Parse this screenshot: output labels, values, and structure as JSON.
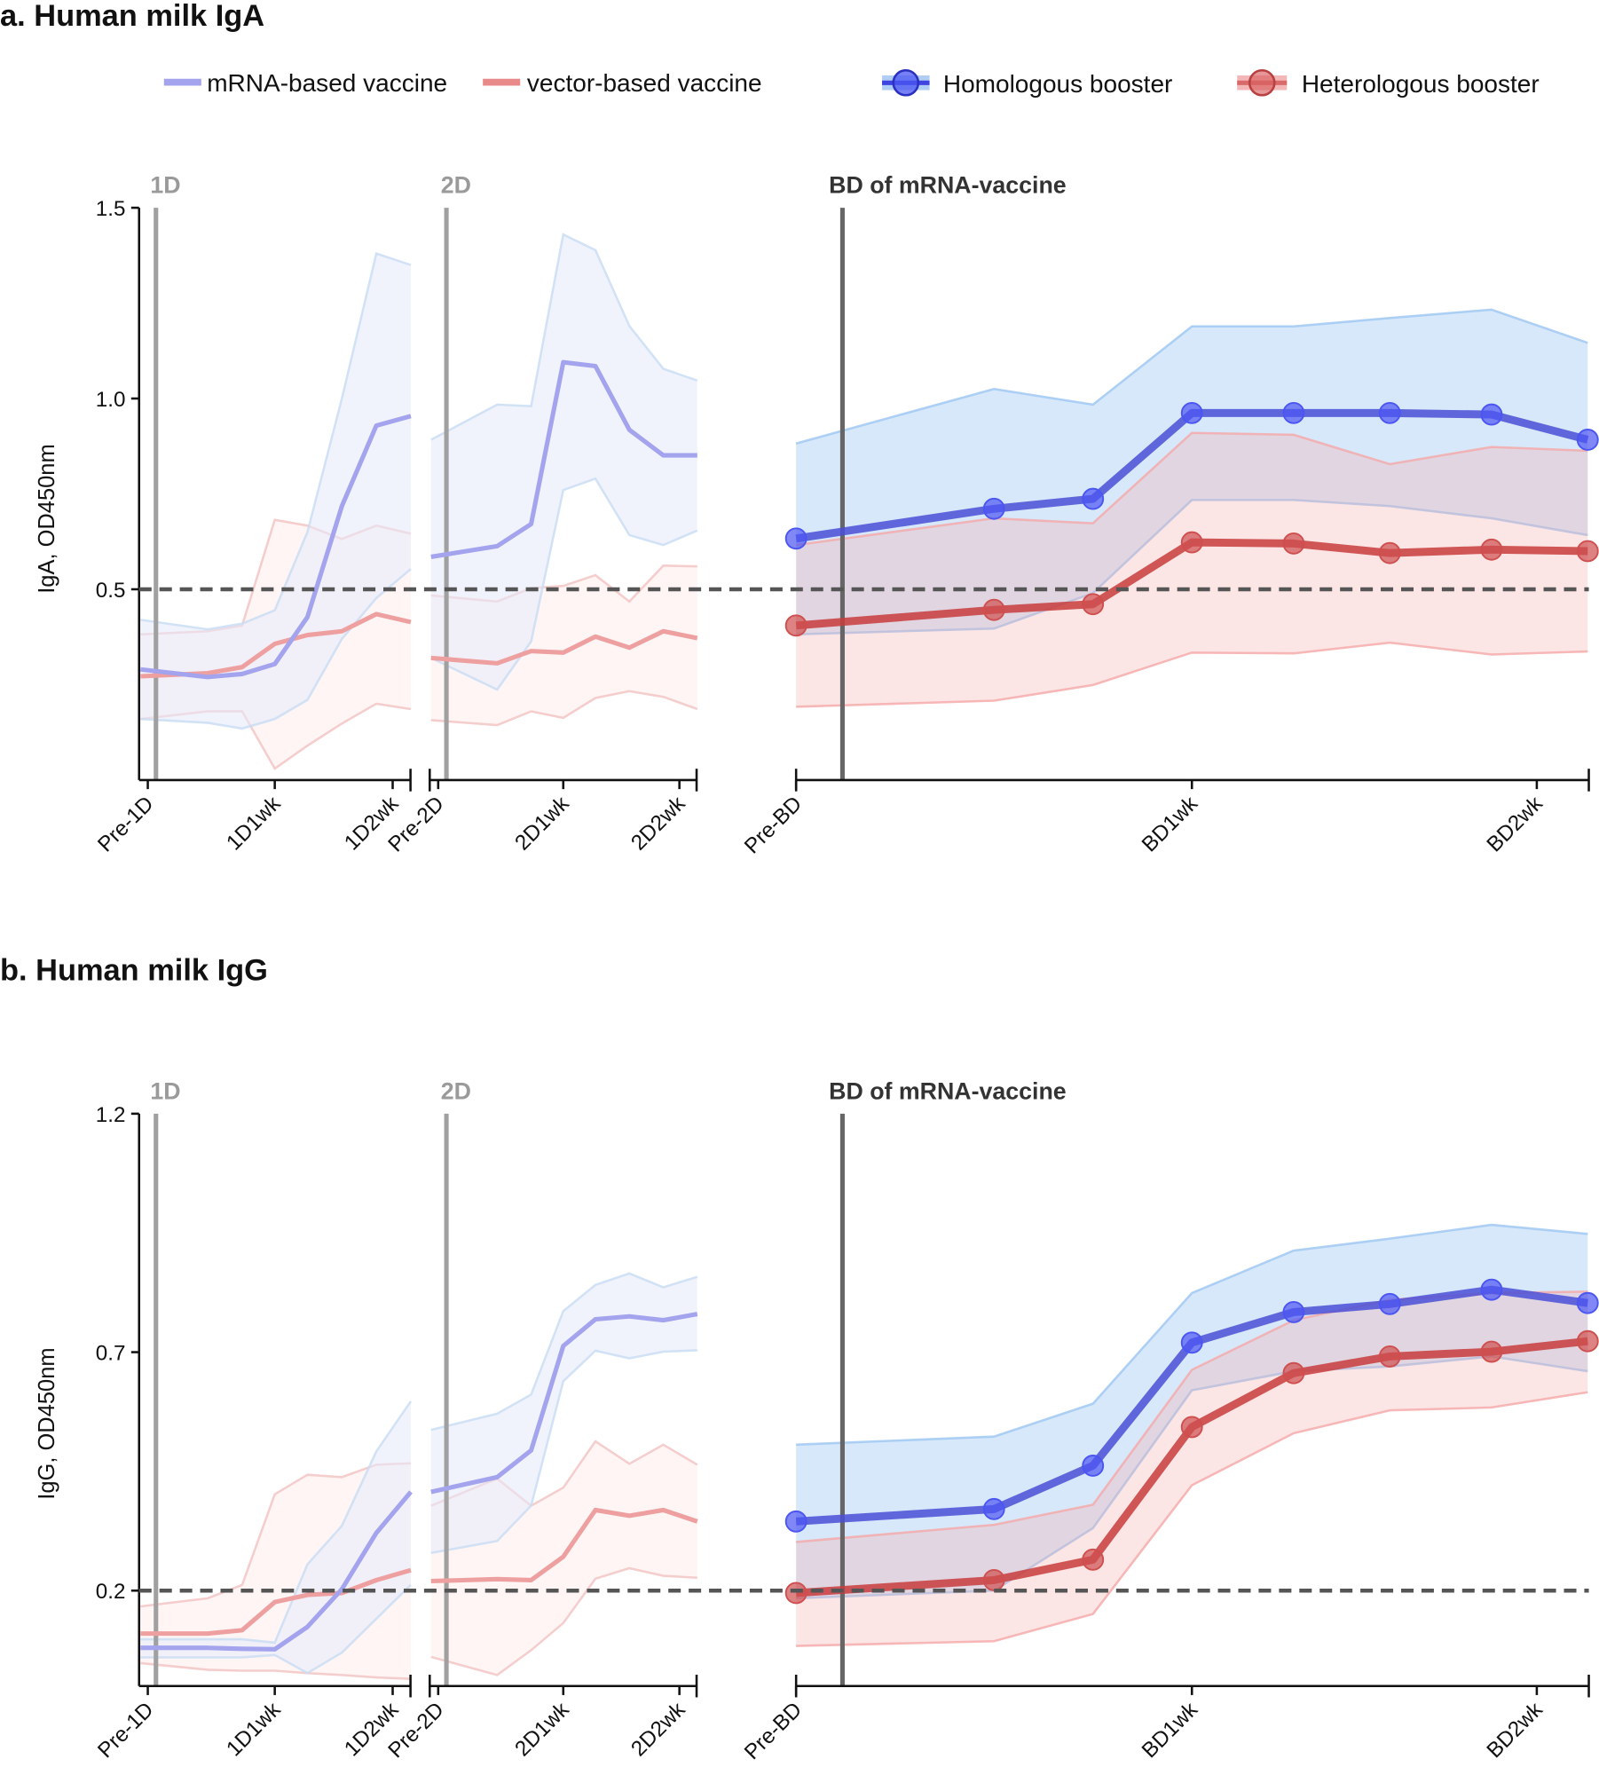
{
  "legend": {
    "items": [
      {
        "label": "mRNA-based vaccine",
        "color": "#a3a3ee",
        "marker": false
      },
      {
        "label": "vector-based vaccine",
        "color": "#e88a8a",
        "marker": false
      },
      {
        "label": "Homologous booster",
        "color": "#3f44e0",
        "band": "#8fb8f0",
        "marker": true
      },
      {
        "label": "Heterologous booster",
        "color": "#cc4444",
        "band": "#f0a5a5",
        "marker": true
      }
    ]
  },
  "colors": {
    "mrna_line": "#a3a3ee",
    "mrna_band": "#e6eaf9",
    "mrna_edge": "#c8dcf4",
    "vector_line": "#eea0a0",
    "vector_band": "#fdeeec",
    "vector_edge": "#f2c2c2",
    "homologous_line": "#4a4fd6",
    "homologous_marker": "#4b55f2",
    "homologous_band": "#9cc6f2",
    "heterologous_line": "#c83c3c",
    "heterologous_marker": "#cf4f4f",
    "heterologous_band": "#f5a8a8",
    "threshold": "#555555",
    "dose_line_light": "#a0a0a0",
    "dose_line_dark": "#666666"
  },
  "chart_data": [
    {
      "type": "line",
      "title": "a. Human milk IgA",
      "ylabel": "IgA, OD450nm",
      "ylim": [
        0,
        1.5
      ],
      "yticks": [
        {
          "value": 0.5,
          "label": "0.5"
        },
        {
          "value": 1.0,
          "label": "1.0"
        },
        {
          "value": 1.5,
          "label": "1.5"
        }
      ],
      "threshold": 0.5,
      "grid": false,
      "segments": [
        {
          "dose_label": "1D",
          "dose_x": 0.45,
          "ticks": [
            {
              "label": "Pre-1D",
              "x": 0
            },
            {
              "label": "1D1wk",
              "x": 7
            },
            {
              "label": "1D2wk",
              "x": 13.5
            }
          ],
          "x": [
            -0.4,
            3.3,
            5.2,
            7,
            8.8,
            10.7,
            12.6,
            14.5
          ],
          "series": [
            {
              "name": "vector-based vaccine",
              "y": [
                0.272,
                0.28,
                0.296,
                0.357,
                0.38,
                0.39,
                0.435,
                0.414
              ],
              "upper": [
                0.382,
                0.39,
                0.405,
                0.682,
                0.667,
                0.632,
                0.667,
                0.646
              ],
              "lower": [
                0.16,
                0.18,
                0.18,
                0.03,
                0.09,
                0.148,
                0.2,
                0.186
              ]
            },
            {
              "name": "mRNA-based vaccine",
              "y": [
                0.29,
                0.27,
                0.278,
                0.304,
                0.427,
                0.718,
                0.929,
                0.954
              ],
              "upper": [
                0.42,
                0.395,
                0.41,
                0.445,
                0.65,
                1.0,
                1.38,
                1.35
              ],
              "lower": [
                0.16,
                0.15,
                0.135,
                0.16,
                0.21,
                0.37,
                0.477,
                0.553
              ]
            }
          ]
        },
        {
          "dose_label": "2D",
          "dose_x": 0.46,
          "ticks": [
            {
              "label": "Pre-2D",
              "x": 0
            },
            {
              "label": "2D1wk",
              "x": 7
            },
            {
              "label": "2D2wk",
              "x": 13.5
            }
          ],
          "x": [
            -0.4,
            3.3,
            5.2,
            7,
            8.8,
            10.7,
            12.6,
            14.5
          ],
          "series": [
            {
              "name": "vector-based vaccine",
              "y": [
                0.32,
                0.306,
                0.338,
                0.334,
                0.376,
                0.347,
                0.39,
                0.372
              ],
              "upper": [
                0.484,
                0.468,
                0.503,
                0.509,
                0.537,
                0.468,
                0.562,
                0.56
              ],
              "lower": [
                0.157,
                0.144,
                0.18,
                0.163,
                0.215,
                0.233,
                0.218,
                0.186
              ]
            },
            {
              "name": "mRNA-based vaccine",
              "y": [
                0.585,
                0.613,
                0.671,
                1.095,
                1.085,
                0.918,
                0.851,
                0.851
              ],
              "upper": [
                0.892,
                0.984,
                0.98,
                1.43,
                1.389,
                1.19,
                1.078,
                1.047
              ],
              "lower": [
                0.32,
                0.237,
                0.363,
                0.76,
                0.79,
                0.642,
                0.616,
                0.654
              ]
            }
          ]
        },
        {
          "dose_label": "BD of mRNA-vaccine",
          "dose_x": 0.82,
          "ticks": [
            {
              "label": "Pre-BD",
              "x": 0
            },
            {
              "label": "BD1wk",
              "x": 7
            },
            {
              "label": "BD2wk",
              "x": 13.1
            }
          ],
          "x": [
            0,
            3.5,
            5.25,
            7,
            8.8,
            10.5,
            12.3,
            14
          ],
          "series": [
            {
              "name": "Homologous booster",
              "y": [
                0.633,
                0.711,
                0.737,
                0.962,
                0.962,
                0.962,
                0.958,
                0.892
              ],
              "upper": [
                0.882,
                1.025,
                0.984,
                1.189,
                1.189,
                1.211,
                1.233,
                1.146
              ],
              "lower": [
                0.382,
                0.397,
                0.49,
                0.734,
                0.734,
                0.718,
                0.686,
                0.642
              ]
            },
            {
              "name": "Heterologous booster",
              "y": [
                0.405,
                0.446,
                0.461,
                0.623,
                0.62,
                0.595,
                0.604,
                0.6
              ],
              "upper": [
                0.616,
                0.686,
                0.673,
                0.91,
                0.905,
                0.828,
                0.873,
                0.863
              ],
              "lower": [
                0.192,
                0.208,
                0.249,
                0.334,
                0.332,
                0.36,
                0.329,
                0.337
              ]
            }
          ]
        }
      ]
    },
    {
      "type": "line",
      "title": "b. Human milk IgG",
      "ylabel": "IgG, OD450nm",
      "ylim": [
        0,
        1.2
      ],
      "yticks": [
        {
          "value": 0.2,
          "label": "0.2"
        },
        {
          "value": 0.7,
          "label": "0.7"
        },
        {
          "value": 1.2,
          "label": "1.2"
        }
      ],
      "threshold": 0.2,
      "grid": false,
      "segments": [
        {
          "dose_label": "1D",
          "dose_x": 0.45,
          "ticks": [
            {
              "label": "Pre-1D",
              "x": 0
            },
            {
              "label": "1D1wk",
              "x": 7
            },
            {
              "label": "1D2wk",
              "x": 13.5
            }
          ],
          "x": [
            -0.4,
            3.3,
            5.2,
            7,
            8.8,
            10.7,
            12.6,
            14.5
          ],
          "series": [
            {
              "name": "vector-based vaccine",
              "y": [
                0.11,
                0.11,
                0.117,
                0.176,
                0.191,
                0.195,
                0.222,
                0.243
              ],
              "upper": [
                0.167,
                0.184,
                0.212,
                0.402,
                0.443,
                0.438,
                0.464,
                0.467
              ],
              "lower": [
                0.048,
                0.034,
                0.032,
                0.032,
                0.027,
                0.023,
                0.018,
                0.015
              ]
            },
            {
              "name": "mRNA-based vaccine",
              "y": [
                0.08,
                0.08,
                0.078,
                0.077,
                0.124,
                0.203,
                0.321,
                0.407
              ],
              "upper": [
                0.098,
                0.098,
                0.098,
                0.091,
                0.255,
                0.336,
                0.492,
                0.597
              ],
              "lower": [
                0.06,
                0.06,
                0.06,
                0.065,
                0.027,
                0.07,
                0.141,
                0.212
              ]
            }
          ]
        },
        {
          "dose_label": "2D",
          "dose_x": 0.46,
          "ticks": [
            {
              "label": "Pre-2D",
              "x": 0
            },
            {
              "label": "2D1wk",
              "x": 7
            },
            {
              "label": "2D2wk",
              "x": 13.5
            }
          ],
          "x": [
            -0.4,
            3.3,
            5.2,
            7,
            8.8,
            10.7,
            12.6,
            14.5
          ],
          "series": [
            {
              "name": "vector-based vaccine",
              "y": [
                0.22,
                0.224,
                0.222,
                0.271,
                0.369,
                0.357,
                0.369,
                0.345
              ],
              "upper": [
                0.378,
                0.435,
                0.378,
                0.416,
                0.513,
                0.466,
                0.506,
                0.464
              ],
              "lower": [
                0.061,
                0.023,
                0.075,
                0.132,
                0.225,
                0.247,
                0.231,
                0.227
              ]
            },
            {
              "name": "mRNA-based vaccine",
              "y": [
                0.407,
                0.438,
                0.494,
                0.713,
                0.769,
                0.775,
                0.767,
                0.78
              ],
              "upper": [
                0.537,
                0.571,
                0.611,
                0.786,
                0.841,
                0.865,
                0.836,
                0.858
              ],
              "lower": [
                0.279,
                0.304,
                0.378,
                0.639,
                0.703,
                0.687,
                0.701,
                0.704
              ]
            }
          ]
        },
        {
          "dose_label": "BD of mRNA-vaccine",
          "dose_x": 0.82,
          "ticks": [
            {
              "label": "Pre-BD",
              "x": 0
            },
            {
              "label": "BD1wk",
              "x": 7
            },
            {
              "label": "BD2wk",
              "x": 13.1
            }
          ],
          "x": [
            0,
            3.5,
            5.25,
            7,
            8.8,
            10.5,
            12.3,
            14
          ],
          "series": [
            {
              "name": "Homologous booster",
              "y": [
                0.345,
                0.371,
                0.462,
                0.72,
                0.784,
                0.801,
                0.831,
                0.803
              ],
              "upper": [
                0.506,
                0.523,
                0.592,
                0.824,
                0.913,
                0.938,
                0.967,
                0.948
              ],
              "lower": [
                0.184,
                0.2,
                0.331,
                0.62,
                0.66,
                0.67,
                0.691,
                0.66
              ]
            },
            {
              "name": "Heterologous booster",
              "y": [
                0.195,
                0.222,
                0.265,
                0.543,
                0.656,
                0.691,
                0.701,
                0.723
              ],
              "upper": [
                0.302,
                0.338,
                0.38,
                0.663,
                0.767,
                0.81,
                0.824,
                0.827
              ],
              "lower": [
                0.084,
                0.094,
                0.151,
                0.421,
                0.53,
                0.578,
                0.584,
                0.616
              ]
            }
          ]
        }
      ]
    }
  ]
}
